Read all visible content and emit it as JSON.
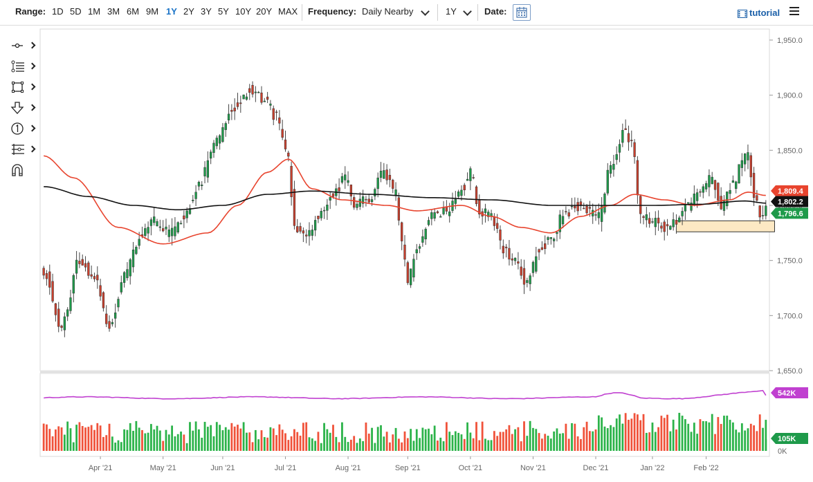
{
  "toolbar": {
    "range_label": "Range:",
    "ranges": [
      "1D",
      "5D",
      "1M",
      "3M",
      "6M",
      "9M",
      "1Y",
      "2Y",
      "3Y",
      "5Y",
      "10Y",
      "20Y",
      "MAX"
    ],
    "active_range": "1Y",
    "frequency_label": "Frequency:",
    "frequency_value": "Daily Nearby",
    "period_value": "1Y",
    "date_label": "Date:",
    "tutorial_label": "tutorial"
  },
  "left_tools": [
    "crosshair-tool-icon",
    "fibonacci-tool-icon",
    "rectangle-tool-icon",
    "arrow-down-tool-icon",
    "counter-tool-icon",
    "measure-tool-icon",
    "magnet-icon"
  ],
  "colors": {
    "up_candle": "#1e9a4a",
    "down_candle": "#c8402e",
    "ma_fast": "#e8442e",
    "ma_slow": "#111111",
    "volume_up": "#2cb34a",
    "volume_down": "#f0523a",
    "open_interest": "#c040d0",
    "support_zone": "#fde9c4",
    "price_badge": "#1e9a4a",
    "ma_fast_badge": "#e8442e",
    "ma_slow_badge": "#111111",
    "oi_badge": "#c040d0",
    "volume_badge": "#1e9a4a"
  },
  "chart_data": {
    "type": "candlestick",
    "x_labels": [
      "Apr '21",
      "May '21",
      "Jun '21",
      "Jul '21",
      "Aug '21",
      "Sep '21",
      "Oct '21",
      "Nov '21",
      "Dec '21",
      "Jan '22",
      "Feb '22"
    ],
    "y_ticks": [
      "1,950.0",
      "1,900.0",
      "1,850.0",
      "1,800.0",
      "1,750.0",
      "1,700.0",
      "1,650.0"
    ],
    "ylim": [
      1650,
      1960
    ],
    "price_badges": {
      "ma_fast": "1,809.4",
      "ma_slow": "1,802.2",
      "last": "1,796.6"
    },
    "volume_badges": {
      "open_interest": "542K",
      "volume": "105K",
      "zero": "0K"
    },
    "anchors": [
      {
        "i": 0,
        "c": 1740
      },
      {
        "i": 6,
        "c": 1690
      },
      {
        "i": 12,
        "c": 1750
      },
      {
        "i": 17,
        "c": 1735
      },
      {
        "i": 22,
        "c": 1690
      },
      {
        "i": 27,
        "c": 1735
      },
      {
        "i": 32,
        "c": 1770
      },
      {
        "i": 37,
        "c": 1785
      },
      {
        "i": 42,
        "c": 1775
      },
      {
        "i": 47,
        "c": 1790
      },
      {
        "i": 52,
        "c": 1820
      },
      {
        "i": 58,
        "c": 1860
      },
      {
        "i": 64,
        "c": 1890
      },
      {
        "i": 69,
        "c": 1905
      },
      {
        "i": 74,
        "c": 1895
      },
      {
        "i": 78,
        "c": 1880
      },
      {
        "i": 82,
        "c": 1840
      },
      {
        "i": 84,
        "c": 1780
      },
      {
        "i": 88,
        "c": 1770
      },
      {
        "i": 92,
        "c": 1790
      },
      {
        "i": 97,
        "c": 1810
      },
      {
        "i": 101,
        "c": 1825
      },
      {
        "i": 104,
        "c": 1800
      },
      {
        "i": 109,
        "c": 1805
      },
      {
        "i": 114,
        "c": 1830
      },
      {
        "i": 118,
        "c": 1810
      },
      {
        "i": 120,
        "c": 1765
      },
      {
        "i": 122,
        "c": 1730
      },
      {
        "i": 125,
        "c": 1760
      },
      {
        "i": 130,
        "c": 1790
      },
      {
        "i": 135,
        "c": 1795
      },
      {
        "i": 140,
        "c": 1815
      },
      {
        "i": 143,
        "c": 1830
      },
      {
        "i": 146,
        "c": 1795
      },
      {
        "i": 150,
        "c": 1790
      },
      {
        "i": 154,
        "c": 1760
      },
      {
        "i": 158,
        "c": 1750
      },
      {
        "i": 162,
        "c": 1730
      },
      {
        "i": 166,
        "c": 1760
      },
      {
        "i": 170,
        "c": 1770
      },
      {
        "i": 174,
        "c": 1790
      },
      {
        "i": 178,
        "c": 1800
      },
      {
        "i": 182,
        "c": 1795
      },
      {
        "i": 186,
        "c": 1790
      },
      {
        "i": 190,
        "c": 1835
      },
      {
        "i": 194,
        "c": 1865
      },
      {
        "i": 197,
        "c": 1860
      },
      {
        "i": 200,
        "c": 1790
      },
      {
        "i": 204,
        "c": 1785
      },
      {
        "i": 208,
        "c": 1780
      },
      {
        "i": 212,
        "c": 1785
      },
      {
        "i": 216,
        "c": 1800
      },
      {
        "i": 220,
        "c": 1815
      },
      {
        "i": 224,
        "c": 1825
      },
      {
        "i": 227,
        "c": 1800
      },
      {
        "i": 231,
        "c": 1820
      },
      {
        "i": 234,
        "c": 1840
      },
      {
        "i": 236,
        "c": 1850
      },
      {
        "i": 238,
        "c": 1810
      },
      {
        "i": 240,
        "c": 1790
      },
      {
        "i": 242,
        "c": 1797
      }
    ],
    "n_bars": 243,
    "ma_fast_anchors": [
      {
        "i": 0,
        "v": 1845
      },
      {
        "i": 10,
        "v": 1825
      },
      {
        "i": 25,
        "v": 1780
      },
      {
        "i": 40,
        "v": 1765
      },
      {
        "i": 55,
        "v": 1775
      },
      {
        "i": 65,
        "v": 1800
      },
      {
        "i": 75,
        "v": 1830
      },
      {
        "i": 82,
        "v": 1842
      },
      {
        "i": 90,
        "v": 1815
      },
      {
        "i": 100,
        "v": 1805
      },
      {
        "i": 115,
        "v": 1800
      },
      {
        "i": 125,
        "v": 1795
      },
      {
        "i": 140,
        "v": 1800
      },
      {
        "i": 150,
        "v": 1790
      },
      {
        "i": 160,
        "v": 1780
      },
      {
        "i": 170,
        "v": 1775
      },
      {
        "i": 180,
        "v": 1790
      },
      {
        "i": 190,
        "v": 1800
      },
      {
        "i": 198,
        "v": 1810
      },
      {
        "i": 208,
        "v": 1805
      },
      {
        "i": 218,
        "v": 1800
      },
      {
        "i": 230,
        "v": 1805
      },
      {
        "i": 236,
        "v": 1812
      },
      {
        "i": 242,
        "v": 1809
      }
    ],
    "ma_slow_anchors": [
      {
        "i": 0,
        "v": 1817
      },
      {
        "i": 15,
        "v": 1808
      },
      {
        "i": 30,
        "v": 1800
      },
      {
        "i": 45,
        "v": 1796
      },
      {
        "i": 60,
        "v": 1800
      },
      {
        "i": 75,
        "v": 1810
      },
      {
        "i": 90,
        "v": 1813
      },
      {
        "i": 110,
        "v": 1810
      },
      {
        "i": 130,
        "v": 1807
      },
      {
        "i": 150,
        "v": 1805
      },
      {
        "i": 170,
        "v": 1800
      },
      {
        "i": 190,
        "v": 1800
      },
      {
        "i": 205,
        "v": 1800
      },
      {
        "i": 220,
        "v": 1801
      },
      {
        "i": 235,
        "v": 1804
      },
      {
        "i": 242,
        "v": 1802
      }
    ],
    "support_zone": {
      "from_bar": 212,
      "to_bar": 244,
      "top": 1786,
      "bottom": 1776
    },
    "volume_ylim": [
      0,
      700
    ],
    "open_interest_level": 480,
    "last_open_interest": 542,
    "last_volume": 105
  }
}
